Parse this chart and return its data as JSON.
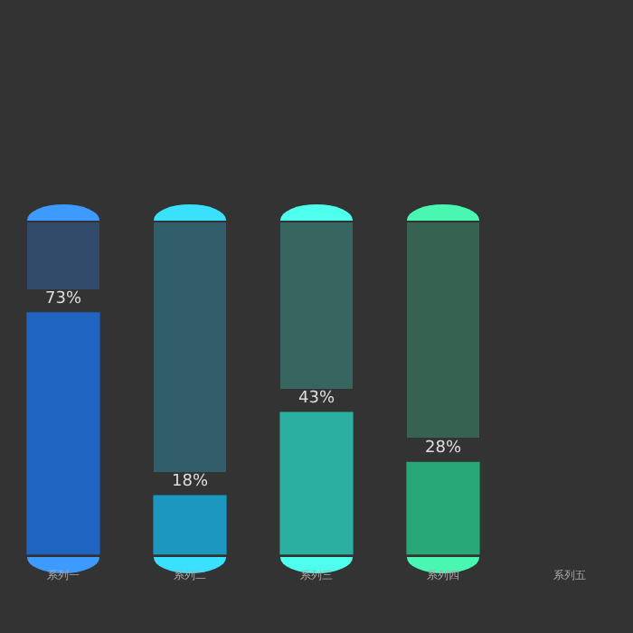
{
  "chart_data": {
    "type": "bar",
    "categories": [
      "系列一",
      "系列二",
      "系列三",
      "系列四",
      "系列五"
    ],
    "ylim": [
      0,
      100
    ],
    "tick_labels": "x",
    "grid": false,
    "legend": false,
    "series": [
      {
        "values": [
          73,
          18,
          43,
          28,
          null
        ],
        "colors": [
          "#1e64c0",
          "#1c98c0",
          "#2aafa0",
          "#27a876",
          "#333333"
        ],
        "value_labels": [
          "73%",
          "18%",
          "43%",
          "28%",
          null
        ]
      }
    ]
  }
}
